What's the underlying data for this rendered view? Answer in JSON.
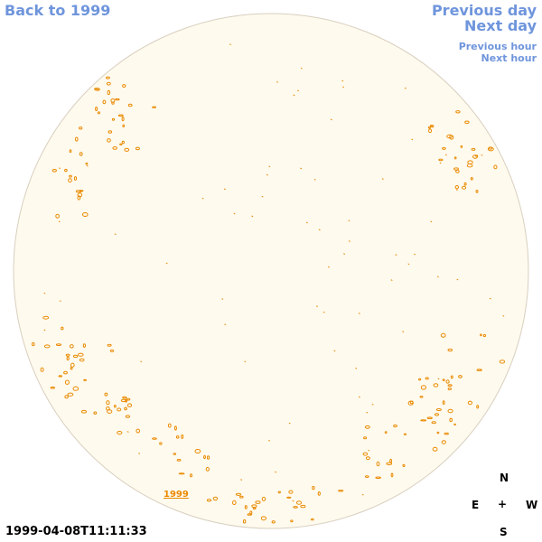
{
  "nav": {
    "back_label": "Back to 1999",
    "prev_day_label": "Previous day",
    "next_day_label": "Next day",
    "prev_hour_label": "Previous hour",
    "next_hour_label": "Next hour"
  },
  "map": {
    "year_link_label": "1999",
    "timestamp": "1999-04-08T11:11:33"
  },
  "compass": {
    "north": "N",
    "east": "E",
    "center": "+",
    "west": "W",
    "south": "S"
  },
  "colors": {
    "disk_fill": "#fffaee",
    "disk_border": "#d8cfbf",
    "contour": "#e98a00",
    "link": "#6f95dc"
  }
}
